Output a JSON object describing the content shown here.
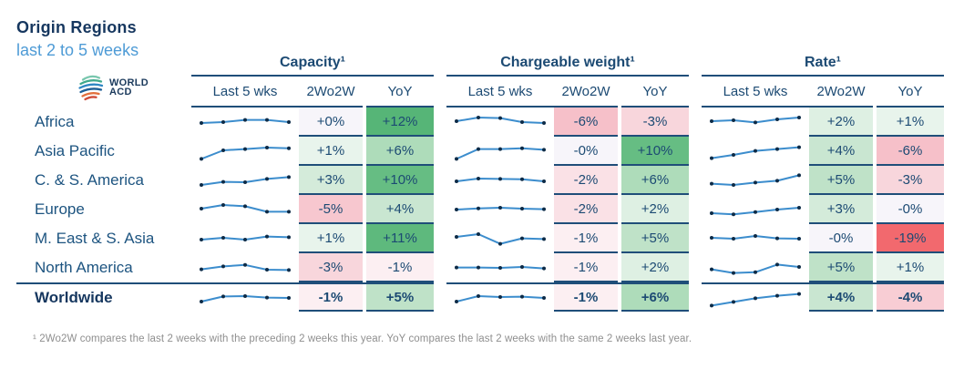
{
  "header": {
    "title": "Origin Regions",
    "subtitle": "last 2 to 5 weeks",
    "logo": {
      "line1": "WORLD",
      "line2": "ACD"
    }
  },
  "columns": {
    "groups": [
      {
        "label": "Capacity¹"
      },
      {
        "label": "Chargeable weight¹"
      },
      {
        "label": "Rate¹"
      }
    ],
    "subcolumns": [
      "Last 5 wks",
      "2Wo2W",
      "YoY"
    ]
  },
  "rows": [
    {
      "label": "Africa",
      "bold": false,
      "capacity": {
        "spark": [
          0.45,
          0.5,
          0.62,
          0.62,
          0.5
        ],
        "w2o2w": {
          "v": "+0%",
          "bg": "#f7f5fa"
        },
        "yoy": {
          "v": "+12%",
          "bg": "#56b577"
        }
      },
      "chargeable": {
        "spark": [
          0.55,
          0.75,
          0.72,
          0.5,
          0.45
        ],
        "w2o2w": {
          "v": "-6%",
          "bg": "#f6c0c9"
        },
        "yoy": {
          "v": "-3%",
          "bg": "#f8d6dc"
        }
      },
      "rate": {
        "spark": [
          0.55,
          0.6,
          0.48,
          0.65,
          0.75
        ],
        "w2o2w": {
          "v": "+2%",
          "bg": "#def0e3"
        },
        "yoy": {
          "v": "+1%",
          "bg": "#e8f4ec"
        }
      }
    },
    {
      "label": "Asia Pacific",
      "bold": false,
      "capacity": {
        "spark": [
          0.08,
          0.55,
          0.62,
          0.7,
          0.66
        ],
        "w2o2w": {
          "v": "+1%",
          "bg": "#e8f4ec"
        },
        "yoy": {
          "v": "+6%",
          "bg": "#aedcba"
        }
      },
      "chargeable": {
        "spark": [
          0.08,
          0.62,
          0.62,
          0.66,
          0.58
        ],
        "w2o2w": {
          "v": "-0%",
          "bg": "#f7f5fa"
        },
        "yoy": {
          "v": "+10%",
          "bg": "#66bd83"
        }
      },
      "rate": {
        "spark": [
          0.12,
          0.3,
          0.52,
          0.62,
          0.72
        ],
        "w2o2w": {
          "v": "+4%",
          "bg": "#c9e6d1"
        },
        "yoy": {
          "v": "-6%",
          "bg": "#f6c0c9"
        }
      }
    },
    {
      "label": "C. & S. America",
      "bold": false,
      "capacity": {
        "spark": [
          0.25,
          0.42,
          0.4,
          0.58,
          0.68
        ],
        "w2o2w": {
          "v": "+3%",
          "bg": "#d4ebda"
        },
        "yoy": {
          "v": "+10%",
          "bg": "#66bd83"
        }
      },
      "chargeable": {
        "spark": [
          0.45,
          0.6,
          0.58,
          0.56,
          0.45
        ],
        "w2o2w": {
          "v": "-2%",
          "bg": "#fae1e6"
        },
        "yoy": {
          "v": "+6%",
          "bg": "#aedcba"
        }
      },
      "rate": {
        "spark": [
          0.32,
          0.25,
          0.38,
          0.48,
          0.78
        ],
        "w2o2w": {
          "v": "+5%",
          "bg": "#bfe2c8"
        },
        "yoy": {
          "v": "-3%",
          "bg": "#f8d6dc"
        }
      }
    },
    {
      "label": "Europe",
      "bold": false,
      "capacity": {
        "spark": [
          0.55,
          0.75,
          0.68,
          0.38,
          0.38
        ],
        "w2o2w": {
          "v": "-5%",
          "bg": "#f7c7cf"
        },
        "yoy": {
          "v": "+4%",
          "bg": "#c9e6d1"
        }
      },
      "chargeable": {
        "spark": [
          0.5,
          0.56,
          0.6,
          0.55,
          0.52
        ],
        "w2o2w": {
          "v": "-2%",
          "bg": "#fae1e6"
        },
        "yoy": {
          "v": "+2%",
          "bg": "#def0e3"
        }
      },
      "rate": {
        "spark": [
          0.3,
          0.24,
          0.36,
          0.5,
          0.6
        ],
        "w2o2w": {
          "v": "+3%",
          "bg": "#d4ebda"
        },
        "yoy": {
          "v": "-0%",
          "bg": "#f7f5fa"
        }
      }
    },
    {
      "label": "M. East & S. Asia",
      "bold": false,
      "capacity": {
        "spark": [
          0.45,
          0.55,
          0.45,
          0.62,
          0.58
        ],
        "w2o2w": {
          "v": "+1%",
          "bg": "#e8f4ec"
        },
        "yoy": {
          "v": "+11%",
          "bg": "#5eb97d"
        }
      },
      "chargeable": {
        "spark": [
          0.6,
          0.75,
          0.22,
          0.52,
          0.48
        ],
        "w2o2w": {
          "v": "-1%",
          "bg": "#fceff2"
        },
        "yoy": {
          "v": "+5%",
          "bg": "#bfe2c8"
        }
      },
      "rate": {
        "spark": [
          0.55,
          0.5,
          0.65,
          0.52,
          0.5
        ],
        "w2o2w": {
          "v": "-0%",
          "bg": "#f7f5fa"
        },
        "yoy": {
          "v": "-19%",
          "bg": "#f2696e"
        }
      }
    },
    {
      "label": "North America",
      "bold": false,
      "capacity": {
        "spark": [
          0.42,
          0.58,
          0.66,
          0.4,
          0.38
        ],
        "w2o2w": {
          "v": "-3%",
          "bg": "#f8d6dc"
        },
        "yoy": {
          "v": "-1%",
          "bg": "#fceff2"
        }
      },
      "chargeable": {
        "spark": [
          0.52,
          0.52,
          0.5,
          0.55,
          0.47
        ],
        "w2o2w": {
          "v": "-1%",
          "bg": "#fceff2"
        },
        "yoy": {
          "v": "+2%",
          "bg": "#def0e3"
        }
      },
      "rate": {
        "spark": [
          0.42,
          0.22,
          0.26,
          0.68,
          0.55
        ],
        "w2o2w": {
          "v": "+5%",
          "bg": "#bfe2c8"
        },
        "yoy": {
          "v": "+1%",
          "bg": "#e8f4ec"
        }
      }
    },
    {
      "label": "Worldwide",
      "bold": true,
      "capacity": {
        "spark": [
          0.3,
          0.58,
          0.6,
          0.52,
          0.5
        ],
        "w2o2w": {
          "v": "-1%",
          "bg": "#fceff2"
        },
        "yoy": {
          "v": "+5%",
          "bg": "#bfe2c8"
        }
      },
      "chargeable": {
        "spark": [
          0.3,
          0.6,
          0.55,
          0.57,
          0.5
        ],
        "w2o2w": {
          "v": "-1%",
          "bg": "#fceff2"
        },
        "yoy": {
          "v": "+6%",
          "bg": "#aedcba"
        }
      },
      "rate": {
        "spark": [
          0.08,
          0.28,
          0.48,
          0.62,
          0.72
        ],
        "w2o2w": {
          "v": "+4%",
          "bg": "#c9e6d1"
        },
        "yoy": {
          "v": "-4%",
          "bg": "#f8cdd4"
        }
      }
    }
  ],
  "footnote": "¹ 2Wo2W compares the last 2 weeks with the preceding 2 weeks this year. YoY compares the last 2 weeks with the same 2 weeks last year.",
  "colors": {
    "navy_line": "#1f4e79",
    "navy_text": "#1c4a73",
    "label_blue": "#1d5480",
    "title_navy": "#16375f",
    "subtitle_blue": "#4e9bd6",
    "spark_line": "#3c8dcd",
    "spark_dot": "#0d2b47",
    "footnote_gray": "#8f8f8f",
    "strong_green": "#56b577",
    "strong_red": "#f2696e"
  },
  "chart_data": {
    "type": "table",
    "title": "Origin Regions — last 2 to 5 weeks",
    "row_labels": [
      "Africa",
      "Asia Pacific",
      "C. & S. America",
      "Europe",
      "M. East & S. Asia",
      "North America",
      "Worldwide"
    ],
    "series": [
      {
        "name": "Capacity 2Wo2W (%)",
        "values": [
          0,
          1,
          3,
          -5,
          1,
          -3,
          -1
        ]
      },
      {
        "name": "Capacity YoY (%)",
        "values": [
          12,
          6,
          10,
          4,
          11,
          -1,
          5
        ]
      },
      {
        "name": "Chargeable weight 2Wo2W (%)",
        "values": [
          -6,
          0,
          -2,
          -2,
          -1,
          -1,
          -1
        ]
      },
      {
        "name": "Chargeable weight YoY (%)",
        "values": [
          -3,
          10,
          6,
          2,
          5,
          2,
          6
        ]
      },
      {
        "name": "Rate 2Wo2W (%)",
        "values": [
          2,
          4,
          5,
          3,
          0,
          5,
          4
        ]
      },
      {
        "name": "Rate YoY (%)",
        "values": [
          1,
          -6,
          -3,
          0,
          -19,
          1,
          -4
        ]
      }
    ],
    "note": "Each 'Last 5 wks' sparkline shows the relative weekly trend over the last 5 weeks (axes unlabeled); values are normalized 0–1 in rows[].spark."
  }
}
